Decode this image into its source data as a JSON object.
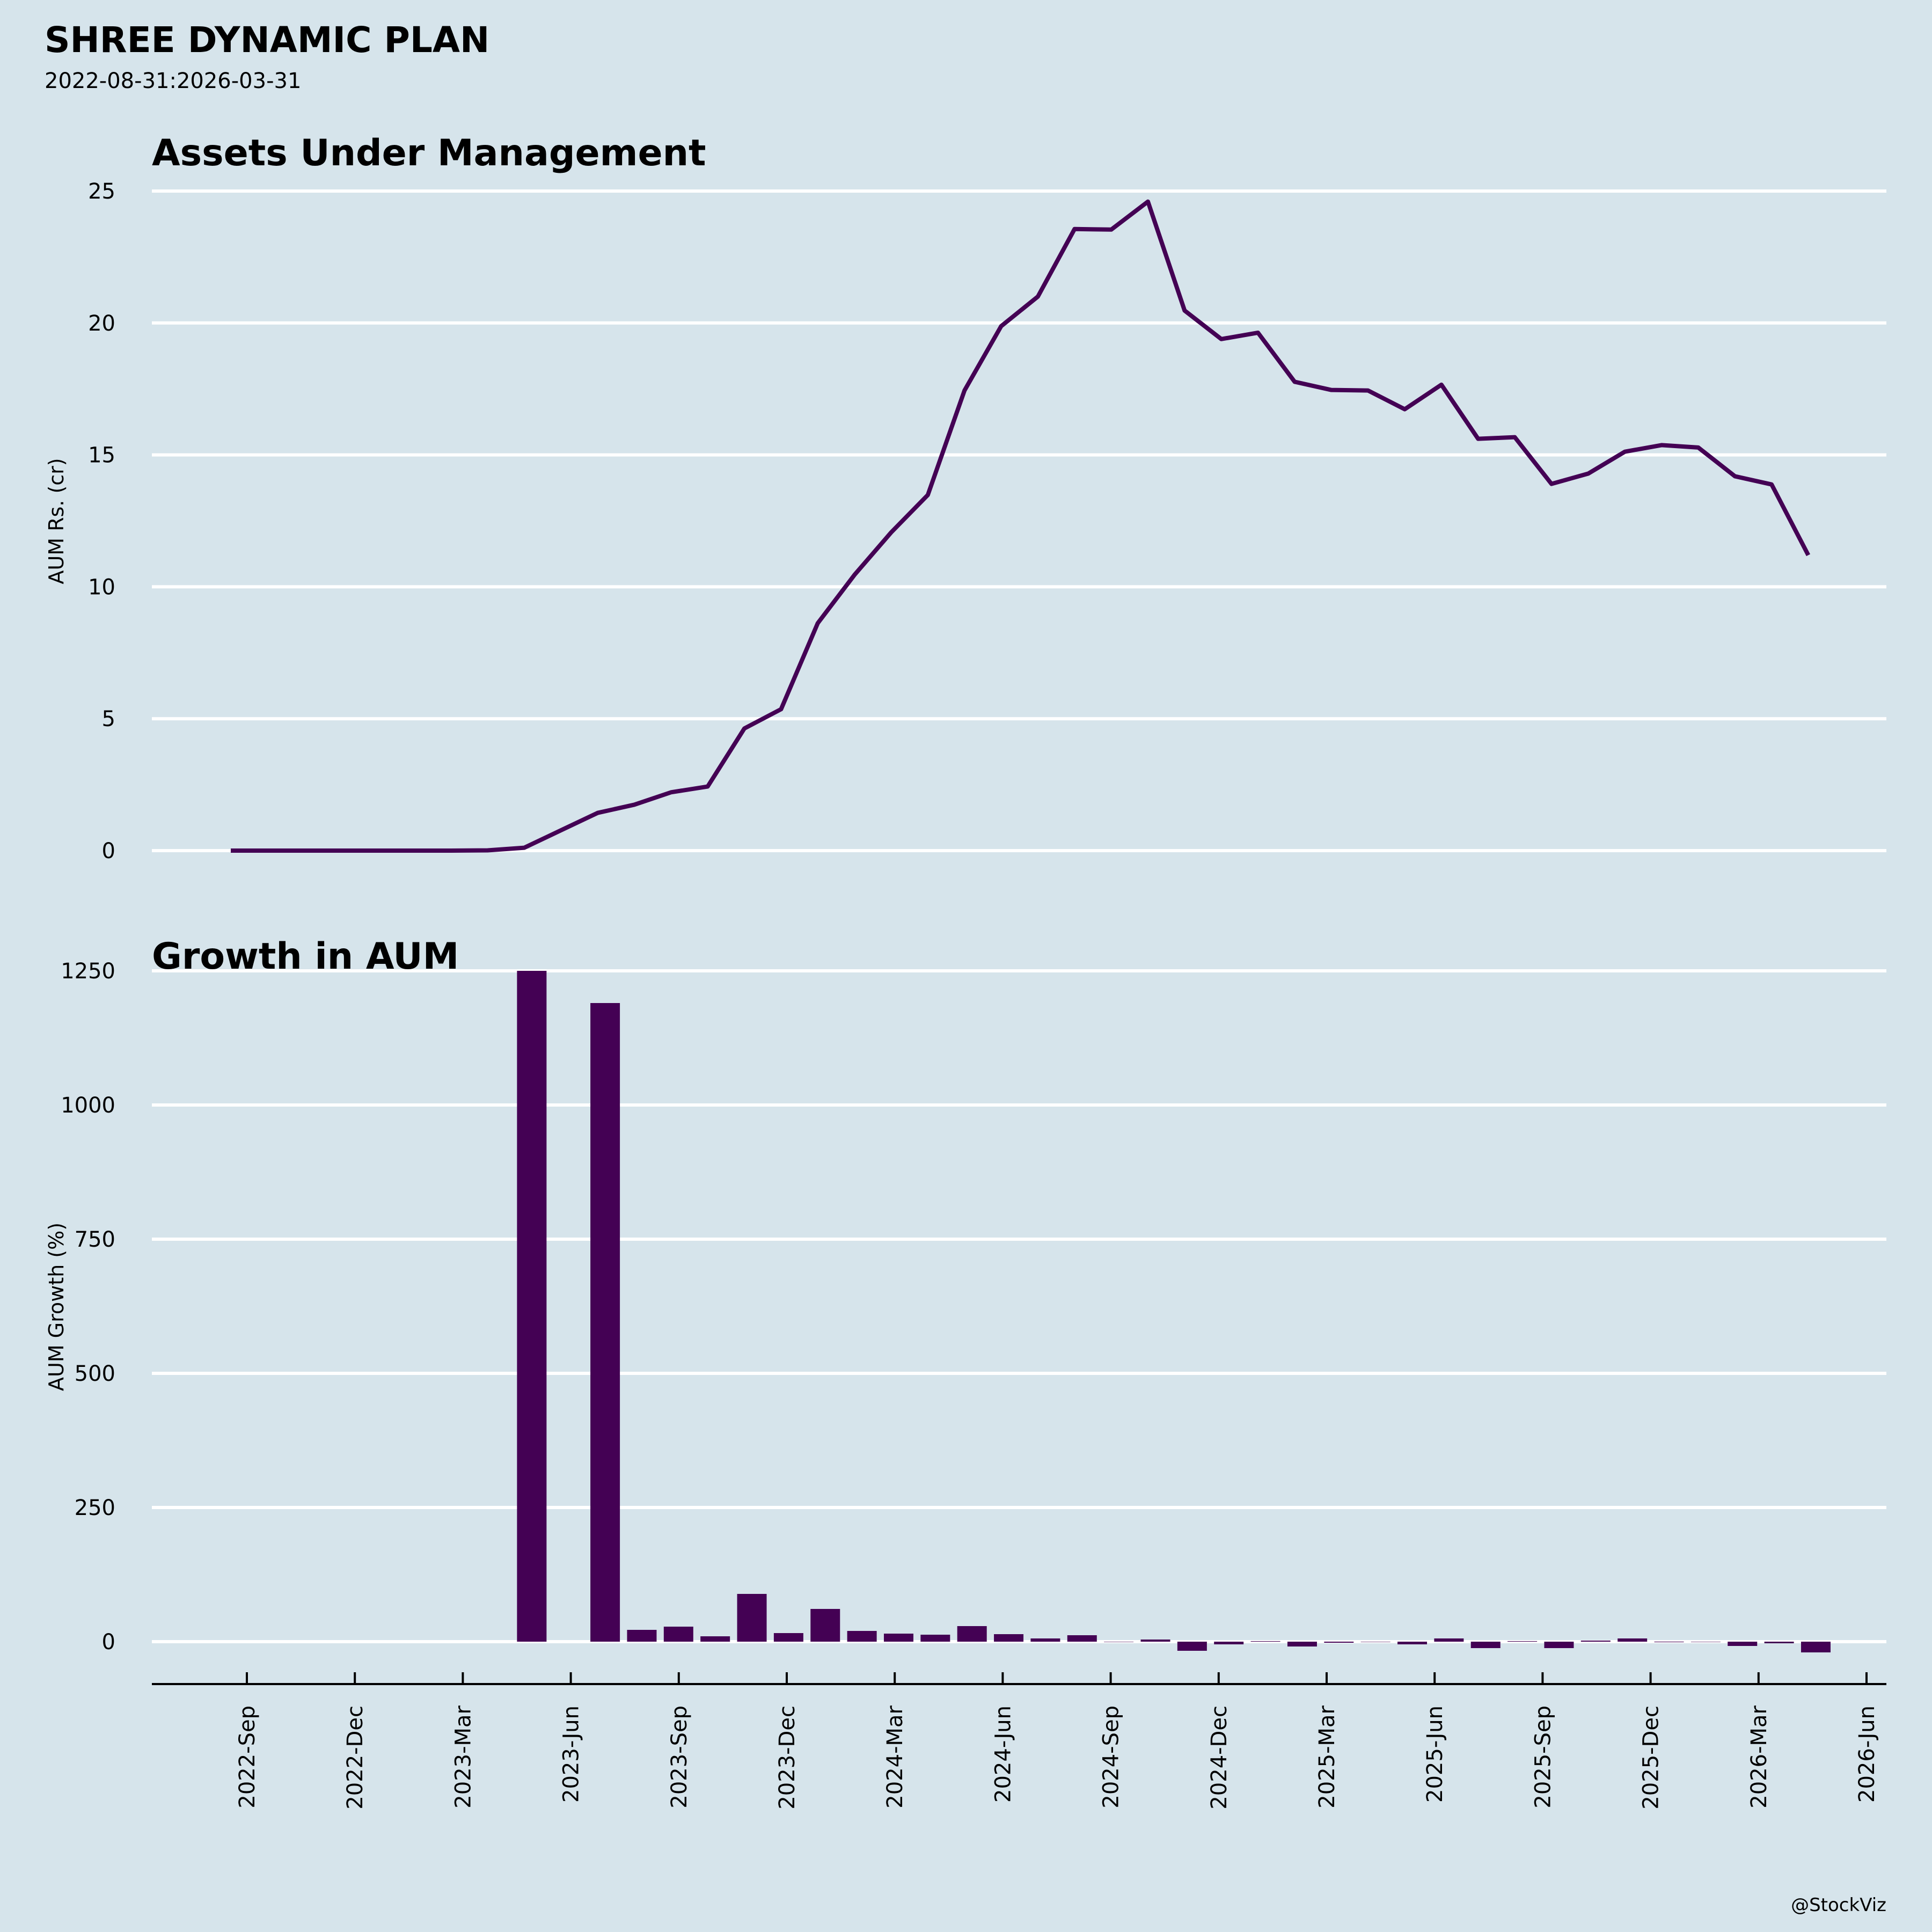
{
  "header": {
    "title": "SHREE DYNAMIC PLAN",
    "subtitle": "2022-08-31:2026-03-31"
  },
  "footer": {
    "credit": "@StockViz"
  },
  "colors": {
    "background": "#d6e4eb",
    "series": "#440154",
    "grid": "#ffffff",
    "axis": "#000000"
  },
  "chart_data": [
    {
      "type": "line",
      "title": "Assets Under Management",
      "xlabel": "",
      "ylabel": "AUM Rs. (cr)",
      "ylim": [
        0,
        25
      ],
      "yticks": [
        0,
        5,
        10,
        15,
        20,
        25
      ],
      "grid": true,
      "x": [
        "2022-08",
        "2022-09",
        "2022-10",
        "2022-11",
        "2022-12",
        "2023-01",
        "2023-02",
        "2023-03",
        "2023-04",
        "2023-05",
        "2023-06",
        "2023-07",
        "2023-08",
        "2023-09",
        "2023-10",
        "2023-11",
        "2023-12",
        "2024-01",
        "2024-02",
        "2024-03",
        "2024-04",
        "2024-05",
        "2024-06",
        "2024-07",
        "2024-08",
        "2024-09",
        "2024-10",
        "2024-11",
        "2024-12",
        "2025-01",
        "2025-02",
        "2025-03",
        "2025-04",
        "2025-05",
        "2025-06",
        "2025-07",
        "2025-08",
        "2025-09",
        "2025-10",
        "2025-11",
        "2025-12",
        "2026-01",
        "2026-02",
        "2026-03"
      ],
      "values": [
        0,
        0,
        0,
        0,
        0,
        0,
        0,
        0.01,
        0.11,
        0.77,
        1.43,
        1.74,
        2.21,
        2.43,
        4.63,
        5.36,
        8.62,
        10.45,
        12.06,
        13.48,
        17.44,
        19.88,
        21.0,
        23.56,
        23.54,
        24.6,
        20.47,
        19.39,
        19.63,
        17.77,
        17.46,
        17.44,
        16.73,
        17.66,
        15.61,
        15.67,
        13.9,
        14.29,
        15.12,
        15.37,
        15.28,
        14.19,
        13.88,
        11.2
      ]
    },
    {
      "type": "bar",
      "title": "Growth in AUM",
      "xlabel": "",
      "ylabel": "AUM Growth (%)",
      "ylim": [
        -79,
        1250
      ],
      "yticks": [
        0,
        250,
        500,
        750,
        1000,
        1250
      ],
      "grid": true,
      "x": [
        "2023-04",
        "2023-05",
        "2023-06",
        "2023-07",
        "2023-08",
        "2023-09",
        "2023-10",
        "2023-11",
        "2023-12",
        "2024-01",
        "2024-02",
        "2024-03",
        "2024-04",
        "2024-05",
        "2024-06",
        "2024-07",
        "2024-08",
        "2024-09",
        "2024-10",
        "2024-11",
        "2024-12",
        "2025-01",
        "2025-02",
        "2025-03",
        "2025-04",
        "2025-05",
        "2025-06",
        "2025-07",
        "2025-08",
        "2025-09",
        "2025-10",
        "2025-11",
        "2025-12",
        "2026-01",
        "2026-02",
        "2026-03"
      ],
      "values": [
        1250,
        null,
        1190,
        22,
        28,
        10,
        89,
        16,
        61,
        20,
        15,
        13,
        29,
        14,
        6,
        12,
        0,
        4,
        -17,
        -5,
        1,
        -9,
        -2,
        0,
        -5,
        6,
        -12,
        1,
        -12,
        2,
        6,
        -1,
        0,
        -8,
        -3,
        -20
      ]
    }
  ],
  "x_axis": {
    "tick_labels": [
      "2022-Sep",
      "2022-Dec",
      "2023-Mar",
      "2023-Jun",
      "2023-Sep",
      "2023-Dec",
      "2024-Mar",
      "2024-Jun",
      "2024-Sep",
      "2024-Dec",
      "2025-Mar",
      "2025-Jun",
      "2025-Sep",
      "2025-Dec",
      "2026-Mar",
      "2026-Jun"
    ]
  }
}
